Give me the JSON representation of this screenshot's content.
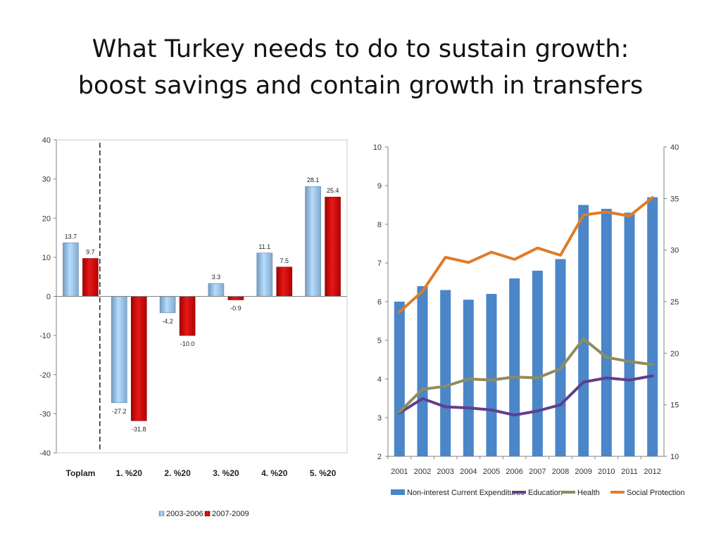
{
  "title": {
    "line1": "What Turkey needs to do to sustain growth:",
    "line2": "boost savings and contain growth in transfers"
  },
  "chart_data": [
    {
      "type": "bar",
      "categories": [
        "Toplam",
        "1. %20",
        "2. %20",
        "3. %20",
        "4. %20",
        "5. %20"
      ],
      "series": [
        {
          "name": "2003-2006",
          "values": [
            13.7,
            -27.2,
            -4.2,
            3.3,
            11.1,
            28.1
          ],
          "labels": [
            "13.7",
            "-27.2",
            "-4.2",
            "3.3",
            "11.1",
            "28.1"
          ],
          "color": "#9cc2e5"
        },
        {
          "name": "2007-2009",
          "values": [
            9.7,
            -31.8,
            -10.0,
            -0.9,
            7.5,
            25.4
          ],
          "labels": [
            "9.7",
            "-31.8",
            "-10.0",
            "-0.9",
            "7.5",
            "25.4"
          ],
          "color": "#cc0000"
        }
      ],
      "ylim": [
        -40,
        40
      ],
      "yticks": [
        -40,
        -30,
        -20,
        -10,
        0,
        10,
        20,
        30,
        40
      ],
      "ytick_labels": [
        "-40",
        "-30",
        "-20",
        "-10",
        "0",
        "10",
        "20",
        "30",
        "40"
      ],
      "divider_after_category": "Toplam",
      "legend_position": "bottom"
    },
    {
      "type": "bar+line",
      "x": [
        "2001",
        "2002",
        "2003",
        "2004",
        "2005",
        "2006",
        "2007",
        "2008",
        "2009",
        "2010",
        "2011",
        "2012"
      ],
      "bars": {
        "name": "Non-interest Current Expenditures",
        "axis": "left",
        "values": [
          6.0,
          6.4,
          6.3,
          6.05,
          6.2,
          6.6,
          6.8,
          7.1,
          8.5,
          8.4,
          8.3,
          8.7
        ],
        "color": "#4a86c8"
      },
      "lines": [
        {
          "name": "Education",
          "axis": "right",
          "values": [
            14.2,
            15.6,
            14.8,
            14.7,
            14.5,
            14.0,
            14.4,
            15.0,
            17.2,
            17.6,
            17.4,
            17.8
          ],
          "color": "#5e3f8e"
        },
        {
          "name": "Health",
          "axis": "right",
          "values": [
            14.3,
            16.5,
            16.8,
            17.5,
            17.4,
            17.7,
            17.6,
            18.5,
            21.4,
            19.6,
            19.2,
            18.9
          ],
          "color": "#8f8c5e"
        },
        {
          "name": "Social Protection",
          "axis": "right",
          "values": [
            24.0,
            26.0,
            29.3,
            28.8,
            29.8,
            29.1,
            30.2,
            29.5,
            33.4,
            33.7,
            33.3,
            35.1
          ],
          "color": "#e07b28"
        }
      ],
      "ylim_left": [
        2,
        10
      ],
      "yticks_left": [
        "2",
        "3",
        "4",
        "5",
        "6",
        "7",
        "8",
        "9",
        "10"
      ],
      "ylim_right": [
        10,
        40
      ],
      "yticks_right": [
        "10",
        "15",
        "20",
        "25",
        "30",
        "35",
        "40"
      ],
      "legend_position": "bottom"
    }
  ]
}
